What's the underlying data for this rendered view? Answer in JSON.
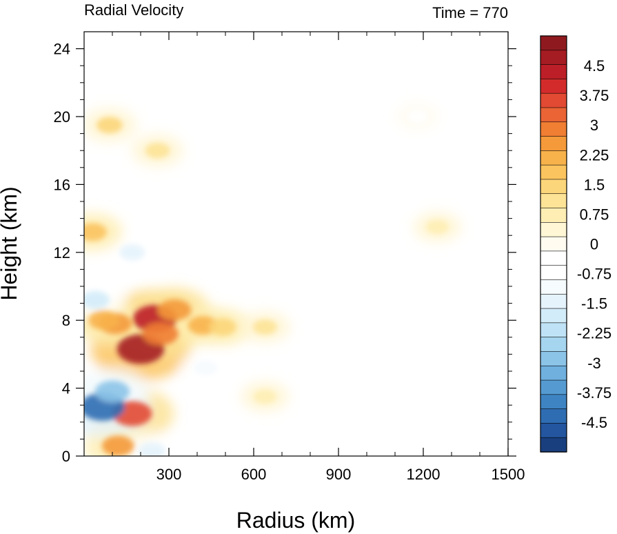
{
  "chart_data": {
    "type": "heatmap",
    "title_left": "Radial Velocity",
    "title_right": "Time = 770",
    "xlabel": "Radius (km)",
    "ylabel": "Height (km)",
    "xlim": [
      0,
      1500
    ],
    "ylim": [
      0,
      25
    ],
    "xticks": [
      300,
      600,
      900,
      1200,
      1500
    ],
    "xtick_labels": [
      "300",
      "600",
      "900",
      "1200",
      "1500"
    ],
    "yticks": [
      0,
      4,
      8,
      12,
      16,
      20,
      24
    ],
    "ytick_labels": [
      "0",
      "4",
      "8",
      "12",
      "16",
      "20",
      "24"
    ],
    "colorbar": {
      "min": -5.25,
      "max": 5.25,
      "step": 0.375,
      "labels": [
        "4.5",
        "3.75",
        "3",
        "2.25",
        "1.5",
        "0.75",
        "0",
        "-0.75",
        "-1.5",
        "-2.25",
        "-3",
        "-3.75",
        "-4.5"
      ],
      "label_values": [
        4.5,
        3.75,
        3,
        2.25,
        1.5,
        0.75,
        0,
        -0.75,
        -1.5,
        -2.25,
        -3,
        -3.75,
        -4.5
      ],
      "colors_top_to_bottom": [
        "#8e1a1f",
        "#a51c22",
        "#bc1f27",
        "#d32b2b",
        "#e24a33",
        "#ea6435",
        "#f07e33",
        "#f49a3a",
        "#f8b24b",
        "#fbc45f",
        "#fcd67a",
        "#fde396",
        "#feeeb4",
        "#fff6d5",
        "#fffbf0",
        "#ffffff",
        "#ffffff",
        "#f6fbfe",
        "#e5f3fc",
        "#d3ecfa",
        "#bfe2f6",
        "#a6d5f0",
        "#8cc4e8",
        "#6fb0de",
        "#559bd2",
        "#3e84c3",
        "#2f6db2",
        "#23569e",
        "#1a3f7f"
      ]
    },
    "features": [
      {
        "r": 200,
        "z": 6.3,
        "value": 4.8
      },
      {
        "r": 250,
        "z": 8.1,
        "value": 4.2
      },
      {
        "r": 270,
        "z": 7.2,
        "value": 3.0
      },
      {
        "r": 320,
        "z": 8.6,
        "value": 2.6
      },
      {
        "r": 170,
        "z": 2.5,
        "value": 3.6
      },
      {
        "r": 110,
        "z": 7.8,
        "value": 2.6
      },
      {
        "r": 70,
        "z": 8.0,
        "value": 2.2
      },
      {
        "r": 120,
        "z": 0.6,
        "value": 2.4
      },
      {
        "r": 420,
        "z": 7.7,
        "value": 2.0
      },
      {
        "r": 490,
        "z": 7.6,
        "value": 1.6
      },
      {
        "r": 640,
        "z": 7.6,
        "value": 1.1
      },
      {
        "r": 65,
        "z": 2.9,
        "value": -4.4
      },
      {
        "r": 100,
        "z": 3.8,
        "value": -2.8
      },
      {
        "r": 40,
        "z": 9.2,
        "value": -1.8
      },
      {
        "r": 170,
        "z": 12.0,
        "value": -1.3
      },
      {
        "r": 240,
        "z": 0.3,
        "value": -1.6
      },
      {
        "r": 430,
        "z": 5.2,
        "value": -1.2
      },
      {
        "r": 30,
        "z": 13.2,
        "value": 1.8
      },
      {
        "r": 90,
        "z": 19.5,
        "value": 1.4
      },
      {
        "r": 260,
        "z": 18.0,
        "value": 1.2
      },
      {
        "r": 1250,
        "z": 13.5,
        "value": 0.9
      },
      {
        "r": 1050,
        "z": 17.8,
        "value": -0.6
      },
      {
        "r": 1180,
        "z": 20.0,
        "value": -0.5
      },
      {
        "r": 640,
        "z": 3.5,
        "value": 0.9
      }
    ]
  }
}
